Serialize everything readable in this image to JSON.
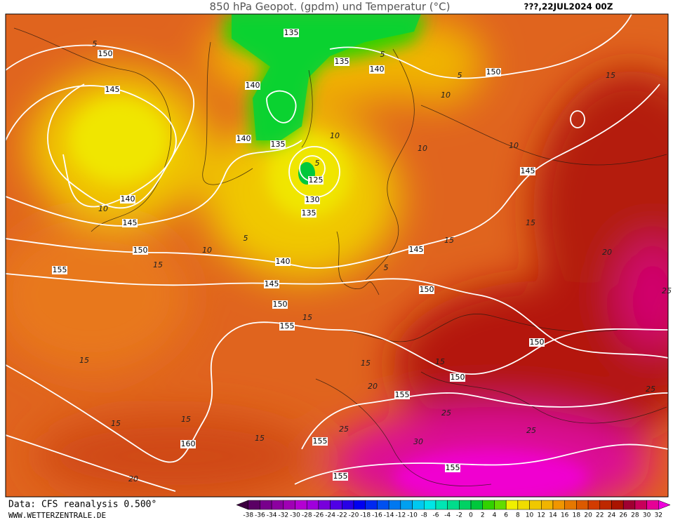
{
  "header": {
    "title": "850 hPa Geopot. (gpdm) und Temperatur (°C)",
    "run": "???,22JUL2024 00Z"
  },
  "footer": {
    "source": "Data: CFS reanalysis 0.500°",
    "site": "WWW.WETTERZENTRALE.DE"
  },
  "colorbar": {
    "labels": [
      "-38",
      "-36",
      "-34",
      "-32",
      "-30",
      "-28",
      "-26",
      "-24",
      "-22",
      "-20",
      "-18",
      "-16",
      "-14",
      "-12",
      "-10",
      "-8",
      "-6",
      "-4",
      "-2",
      "0",
      "2",
      "4",
      "6",
      "8",
      "10",
      "12",
      "14",
      "16",
      "18",
      "20",
      "22",
      "24",
      "26",
      "28",
      "30",
      "32"
    ],
    "colors": [
      "#3c0040",
      "#5a0064",
      "#78008c",
      "#8c00a0",
      "#a000b4",
      "#b400d2",
      "#a000dc",
      "#7800dc",
      "#5000e6",
      "#2800e6",
      "#0000f0",
      "#0028f0",
      "#0050f0",
      "#0078f0",
      "#00a0f0",
      "#00c8f0",
      "#00e6e6",
      "#00e6b4",
      "#00dc8c",
      "#00d264",
      "#00c83c",
      "#32d200",
      "#64dc00",
      "#f0f000",
      "#f0dc00",
      "#f0c800",
      "#f0b400",
      "#f09600",
      "#e67800",
      "#dc5a00",
      "#d23c00",
      "#be2800",
      "#aa1400",
      "#a00032",
      "#c8005a",
      "#e60096",
      "#f000dc"
    ]
  },
  "geopotential_labels": [
    "135",
    "150",
    "135",
    "140",
    "150",
    "145",
    "140",
    "140",
    "135",
    "145",
    "125",
    "140",
    "130",
    "135",
    "145",
    "150",
    "145",
    "155",
    "140",
    "145",
    "150",
    "150",
    "155",
    "150",
    "150",
    "155",
    "160",
    "155",
    "155",
    "155"
  ],
  "temperature_labels": [
    "5",
    "5",
    "5",
    "10",
    "15",
    "10",
    "10",
    "10",
    "5",
    "10",
    "5",
    "10",
    "15",
    "5",
    "15",
    "15",
    "20",
    "15",
    "15",
    "15",
    "15",
    "20",
    "15",
    "15",
    "15",
    "25",
    "30",
    "25",
    "25",
    "25",
    "20",
    "25"
  ]
}
